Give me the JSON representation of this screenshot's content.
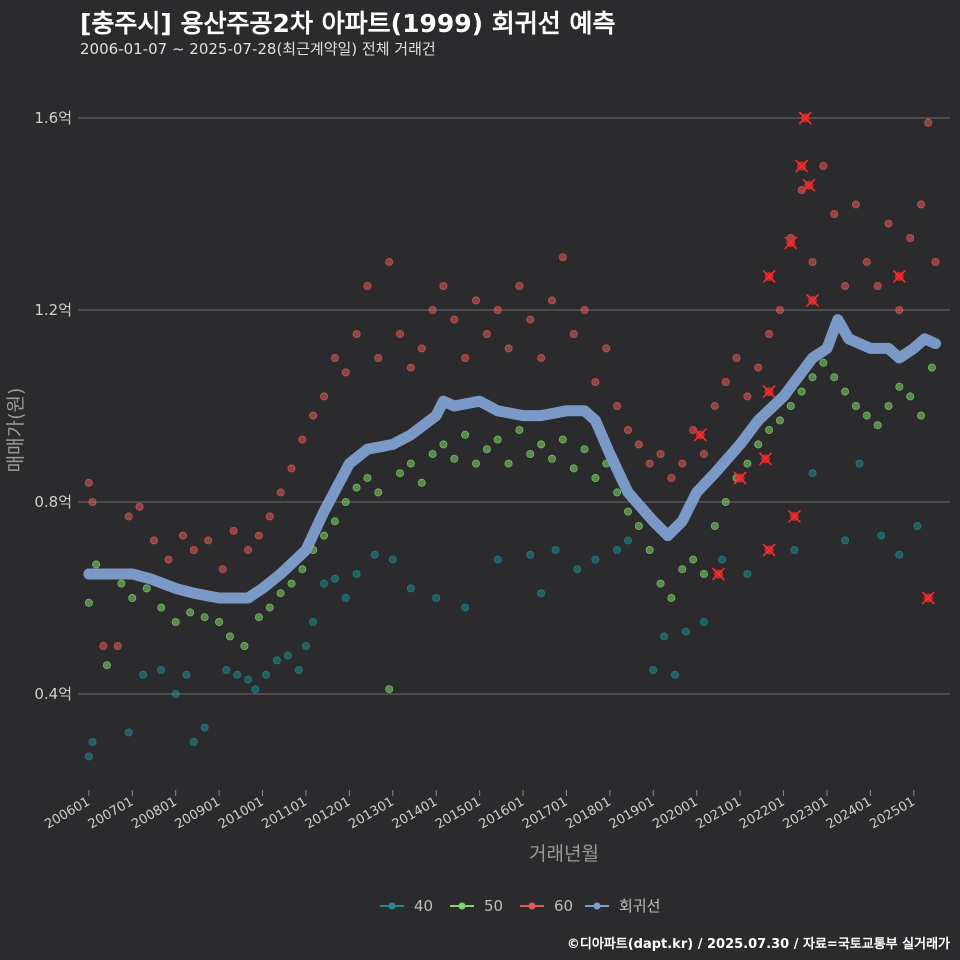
{
  "title": "[충주시] 용산주공2차 아파트(1999) 회귀선 예측",
  "subtitle": "2006-01-07 ~ 2025-07-28(최근계약일) 전체 거래건",
  "caption": "©디아파트(dapt.kr) / 2025.07.30 / 자료=국토교통부 실거래가",
  "chart_data": {
    "type": "scatter",
    "xlabel": "거래년월",
    "ylabel": "매매가(원)",
    "x_range": [
      "2005-10",
      "2025-11"
    ],
    "y_range": [
      0.2,
      1.7
    ],
    "y_ticks": [
      {
        "value": 0.4,
        "label": "0.4억"
      },
      {
        "value": 0.8,
        "label": "0.8억"
      },
      {
        "value": 1.2,
        "label": "1.2억"
      },
      {
        "value": 1.6,
        "label": "1.6억"
      }
    ],
    "x_ticks": [
      {
        "value": "2006-01",
        "label": "200601"
      },
      {
        "value": "2007-01",
        "label": "200701"
      },
      {
        "value": "2008-01",
        "label": "200801"
      },
      {
        "value": "2009-01",
        "label": "200901"
      },
      {
        "value": "2010-01",
        "label": "201001"
      },
      {
        "value": "2011-01",
        "label": "201101"
      },
      {
        "value": "2012-01",
        "label": "201201"
      },
      {
        "value": "2013-01",
        "label": "201301"
      },
      {
        "value": "2014-01",
        "label": "201401"
      },
      {
        "value": "2015-01",
        "label": "201501"
      },
      {
        "value": "2016-01",
        "label": "201601"
      },
      {
        "value": "2017-01",
        "label": "201701"
      },
      {
        "value": "2018-01",
        "label": "201801"
      },
      {
        "value": "2019-01",
        "label": "201901"
      },
      {
        "value": "2020-01",
        "label": "202001"
      },
      {
        "value": "2021-01",
        "label": "202101"
      },
      {
        "value": "2022-01",
        "label": "202201"
      },
      {
        "value": "2023-01",
        "label": "202301"
      },
      {
        "value": "2024-01",
        "label": "202401"
      },
      {
        "value": "2025-01",
        "label": "202501"
      }
    ],
    "grid": "horizontal",
    "legend_position": "bottom",
    "colors": {
      "40": "#1f8a8a",
      "50": "#7fd46a",
      "60": "#e05a5a",
      "regression": "#7f9fd0"
    },
    "series": [
      {
        "name": "40",
        "color": "#1f8a8a",
        "points": [
          [
            "2006-01",
            0.27
          ],
          [
            "2006-02",
            0.3
          ],
          [
            "2006-12",
            0.32
          ],
          [
            "2007-04",
            0.44
          ],
          [
            "2007-09",
            0.45
          ],
          [
            "2008-01",
            0.4
          ],
          [
            "2008-04",
            0.44
          ],
          [
            "2008-06",
            0.3
          ],
          [
            "2008-09",
            0.33
          ],
          [
            "2009-03",
            0.45
          ],
          [
            "2009-06",
            0.44
          ],
          [
            "2009-09",
            0.43
          ],
          [
            "2009-11",
            0.41
          ],
          [
            "2010-02",
            0.44
          ],
          [
            "2010-05",
            0.47
          ],
          [
            "2010-08",
            0.48
          ],
          [
            "2010-11",
            0.45
          ],
          [
            "2011-01",
            0.5
          ],
          [
            "2011-03",
            0.55
          ],
          [
            "2011-06",
            0.63
          ],
          [
            "2011-09",
            0.64
          ],
          [
            "2011-12",
            0.6
          ],
          [
            "2012-03",
            0.65
          ],
          [
            "2012-08",
            0.69
          ],
          [
            "2013-01",
            0.68
          ],
          [
            "2013-06",
            0.62
          ],
          [
            "2014-01",
            0.6
          ],
          [
            "2014-09",
            0.58
          ],
          [
            "2015-06",
            0.68
          ],
          [
            "2016-03",
            0.69
          ],
          [
            "2016-06",
            0.61
          ],
          [
            "2016-10",
            0.7
          ],
          [
            "2017-04",
            0.66
          ],
          [
            "2017-09",
            0.68
          ],
          [
            "2018-03",
            0.7
          ],
          [
            "2018-06",
            0.72
          ],
          [
            "2019-01",
            0.45
          ],
          [
            "2019-04",
            0.52
          ],
          [
            "2019-07",
            0.44
          ],
          [
            "2019-10",
            0.53
          ],
          [
            "2020-03",
            0.55
          ],
          [
            "2020-08",
            0.68
          ],
          [
            "2021-03",
            0.65
          ],
          [
            "2022-04",
            0.7
          ],
          [
            "2022-09",
            0.86
          ],
          [
            "2023-06",
            0.72
          ],
          [
            "2023-10",
            0.88
          ],
          [
            "2024-04",
            0.73
          ],
          [
            "2024-09",
            0.69
          ],
          [
            "2025-02",
            0.75
          ]
        ]
      },
      {
        "name": "50",
        "color": "#7fd46a",
        "points": [
          [
            "2006-01",
            0.59
          ],
          [
            "2006-03",
            0.67
          ],
          [
            "2006-06",
            0.46
          ],
          [
            "2006-10",
            0.63
          ],
          [
            "2007-01",
            0.6
          ],
          [
            "2007-05",
            0.62
          ],
          [
            "2007-09",
            0.58
          ],
          [
            "2008-01",
            0.55
          ],
          [
            "2008-05",
            0.57
          ],
          [
            "2008-09",
            0.56
          ],
          [
            "2009-01",
            0.55
          ],
          [
            "2009-04",
            0.52
          ],
          [
            "2009-08",
            0.5
          ],
          [
            "2009-12",
            0.56
          ],
          [
            "2010-03",
            0.58
          ],
          [
            "2010-06",
            0.61
          ],
          [
            "2010-09",
            0.63
          ],
          [
            "2010-12",
            0.66
          ],
          [
            "2011-03",
            0.7
          ],
          [
            "2011-06",
            0.73
          ],
          [
            "2011-09",
            0.76
          ],
          [
            "2011-12",
            0.8
          ],
          [
            "2012-03",
            0.83
          ],
          [
            "2012-06",
            0.85
          ],
          [
            "2012-09",
            0.82
          ],
          [
            "2012-12",
            0.41
          ],
          [
            "2013-03",
            0.86
          ],
          [
            "2013-06",
            0.88
          ],
          [
            "2013-09",
            0.84
          ],
          [
            "2013-12",
            0.9
          ],
          [
            "2014-03",
            0.92
          ],
          [
            "2014-06",
            0.89
          ],
          [
            "2014-09",
            0.94
          ],
          [
            "2014-12",
            0.88
          ],
          [
            "2015-03",
            0.91
          ],
          [
            "2015-06",
            0.93
          ],
          [
            "2015-09",
            0.88
          ],
          [
            "2015-12",
            0.95
          ],
          [
            "2016-03",
            0.9
          ],
          [
            "2016-06",
            0.92
          ],
          [
            "2016-09",
            0.89
          ],
          [
            "2016-12",
            0.93
          ],
          [
            "2017-03",
            0.87
          ],
          [
            "2017-06",
            0.91
          ],
          [
            "2017-09",
            0.85
          ],
          [
            "2017-12",
            0.88
          ],
          [
            "2018-03",
            0.82
          ],
          [
            "2018-06",
            0.78
          ],
          [
            "2018-09",
            0.75
          ],
          [
            "2018-12",
            0.7
          ],
          [
            "2019-03",
            0.63
          ],
          [
            "2019-06",
            0.6
          ],
          [
            "2019-09",
            0.66
          ],
          [
            "2019-12",
            0.68
          ],
          [
            "2020-03",
            0.65
          ],
          [
            "2020-06",
            0.75
          ],
          [
            "2020-09",
            0.8
          ],
          [
            "2020-12",
            0.85
          ],
          [
            "2021-03",
            0.88
          ],
          [
            "2021-06",
            0.92
          ],
          [
            "2021-09",
            0.95
          ],
          [
            "2021-12",
            0.97
          ],
          [
            "2022-03",
            1.0
          ],
          [
            "2022-06",
            1.03
          ],
          [
            "2022-09",
            1.06
          ],
          [
            "2022-12",
            1.09
          ],
          [
            "2023-03",
            1.06
          ],
          [
            "2023-06",
            1.03
          ],
          [
            "2023-09",
            1.0
          ],
          [
            "2023-12",
            0.98
          ],
          [
            "2024-03",
            0.96
          ],
          [
            "2024-06",
            1.0
          ],
          [
            "2024-09",
            1.04
          ],
          [
            "2024-12",
            1.02
          ],
          [
            "2025-03",
            0.98
          ],
          [
            "2025-06",
            1.08
          ]
        ]
      },
      {
        "name": "60",
        "color": "#e05a5a",
        "points": [
          [
            "2006-01",
            0.84
          ],
          [
            "2006-02",
            0.8
          ],
          [
            "2006-05",
            0.5
          ],
          [
            "2006-09",
            0.5
          ],
          [
            "2006-12",
            0.77
          ],
          [
            "2007-03",
            0.79
          ],
          [
            "2007-07",
            0.72
          ],
          [
            "2007-11",
            0.68
          ],
          [
            "2008-03",
            0.73
          ],
          [
            "2008-06",
            0.7
          ],
          [
            "2008-10",
            0.72
          ],
          [
            "2009-02",
            0.66
          ],
          [
            "2009-05",
            0.74
          ],
          [
            "2009-09",
            0.7
          ],
          [
            "2009-12",
            0.73
          ],
          [
            "2010-03",
            0.77
          ],
          [
            "2010-06",
            0.82
          ],
          [
            "2010-09",
            0.87
          ],
          [
            "2010-12",
            0.93
          ],
          [
            "2011-03",
            0.98
          ],
          [
            "2011-06",
            1.02
          ],
          [
            "2011-09",
            1.1
          ],
          [
            "2011-12",
            1.07
          ],
          [
            "2012-03",
            1.15
          ],
          [
            "2012-06",
            1.25
          ],
          [
            "2012-09",
            1.1
          ],
          [
            "2012-12",
            1.3
          ],
          [
            "2013-03",
            1.15
          ],
          [
            "2013-06",
            1.08
          ],
          [
            "2013-09",
            1.12
          ],
          [
            "2013-12",
            1.2
          ],
          [
            "2014-03",
            1.25
          ],
          [
            "2014-06",
            1.18
          ],
          [
            "2014-09",
            1.1
          ],
          [
            "2014-12",
            1.22
          ],
          [
            "2015-03",
            1.15
          ],
          [
            "2015-06",
            1.2
          ],
          [
            "2015-09",
            1.12
          ],
          [
            "2015-12",
            1.25
          ],
          [
            "2016-03",
            1.18
          ],
          [
            "2016-06",
            1.1
          ],
          [
            "2016-09",
            1.22
          ],
          [
            "2016-12",
            1.31
          ],
          [
            "2017-03",
            1.15
          ],
          [
            "2017-06",
            1.2
          ],
          [
            "2017-09",
            1.05
          ],
          [
            "2017-12",
            1.12
          ],
          [
            "2018-03",
            1.0
          ],
          [
            "2018-06",
            0.95
          ],
          [
            "2018-09",
            0.92
          ],
          [
            "2018-12",
            0.88
          ],
          [
            "2019-03",
            0.9
          ],
          [
            "2019-06",
            0.85
          ],
          [
            "2019-09",
            0.88
          ],
          [
            "2019-12",
            0.95
          ],
          [
            "2020-03",
            0.9
          ],
          [
            "2020-06",
            1.0
          ],
          [
            "2020-09",
            1.05
          ],
          [
            "2020-12",
            1.1
          ],
          [
            "2021-03",
            1.02
          ],
          [
            "2021-06",
            1.08
          ],
          [
            "2021-09",
            1.15
          ],
          [
            "2021-12",
            1.2
          ],
          [
            "2022-03",
            1.35
          ],
          [
            "2022-06",
            1.45
          ],
          [
            "2022-09",
            1.3
          ],
          [
            "2022-12",
            1.5
          ],
          [
            "2023-03",
            1.4
          ],
          [
            "2023-06",
            1.25
          ],
          [
            "2023-09",
            1.42
          ],
          [
            "2023-12",
            1.3
          ],
          [
            "2024-03",
            1.25
          ],
          [
            "2024-06",
            1.38
          ],
          [
            "2024-09",
            1.2
          ],
          [
            "2024-12",
            1.35
          ],
          [
            "2025-03",
            1.42
          ],
          [
            "2025-05",
            1.59
          ],
          [
            "2025-07",
            1.3
          ]
        ]
      },
      {
        "name": "회귀선",
        "color": "#7f9fd0",
        "type": "line",
        "points": [
          [
            "2006-01",
            0.65
          ],
          [
            "2006-06",
            0.65
          ],
          [
            "2007-01",
            0.65
          ],
          [
            "2007-06",
            0.64
          ],
          [
            "2008-01",
            0.62
          ],
          [
            "2008-06",
            0.61
          ],
          [
            "2009-01",
            0.6
          ],
          [
            "2009-06",
            0.6
          ],
          [
            "2009-09",
            0.6
          ],
          [
            "2010-01",
            0.62
          ],
          [
            "2010-06",
            0.65
          ],
          [
            "2011-01",
            0.7
          ],
          [
            "2011-06",
            0.78
          ],
          [
            "2012-01",
            0.88
          ],
          [
            "2012-06",
            0.91
          ],
          [
            "2013-01",
            0.92
          ],
          [
            "2013-06",
            0.94
          ],
          [
            "2014-01",
            0.98
          ],
          [
            "2014-03",
            1.01
          ],
          [
            "2014-06",
            1.0
          ],
          [
            "2015-01",
            1.01
          ],
          [
            "2015-06",
            0.99
          ],
          [
            "2016-01",
            0.98
          ],
          [
            "2016-06",
            0.98
          ],
          [
            "2017-01",
            0.99
          ],
          [
            "2017-06",
            0.99
          ],
          [
            "2017-09",
            0.97
          ],
          [
            "2018-01",
            0.9
          ],
          [
            "2018-06",
            0.82
          ],
          [
            "2019-01",
            0.76
          ],
          [
            "2019-05",
            0.73
          ],
          [
            "2019-09",
            0.76
          ],
          [
            "2020-01",
            0.82
          ],
          [
            "2020-06",
            0.86
          ],
          [
            "2021-01",
            0.92
          ],
          [
            "2021-06",
            0.97
          ],
          [
            "2022-01",
            1.02
          ],
          [
            "2022-06",
            1.07
          ],
          [
            "2022-09",
            1.1
          ],
          [
            "2023-01",
            1.12
          ],
          [
            "2023-04",
            1.18
          ],
          [
            "2023-07",
            1.14
          ],
          [
            "2024-01",
            1.12
          ],
          [
            "2024-06",
            1.12
          ],
          [
            "2024-09",
            1.1
          ],
          [
            "2025-01",
            1.12
          ],
          [
            "2025-04",
            1.14
          ],
          [
            "2025-07",
            1.13
          ]
        ]
      }
    ],
    "highlighted_points": [
      [
        "2020-02",
        0.94
      ],
      [
        "2020-07",
        0.65
      ],
      [
        "2021-01",
        0.85
      ],
      [
        "2021-08",
        0.89
      ],
      [
        "2021-09",
        0.7
      ],
      [
        "2021-09",
        1.27
      ],
      [
        "2021-09",
        1.03
      ],
      [
        "2022-03",
        1.34
      ],
      [
        "2022-04",
        0.77
      ],
      [
        "2022-06",
        1.5
      ],
      [
        "2022-07",
        1.6
      ],
      [
        "2022-08",
        1.46
      ],
      [
        "2022-09",
        1.22
      ],
      [
        "2024-09",
        1.27
      ],
      [
        "2025-05",
        0.6
      ]
    ],
    "legend": [
      "40",
      "50",
      "60",
      "회귀선"
    ]
  }
}
